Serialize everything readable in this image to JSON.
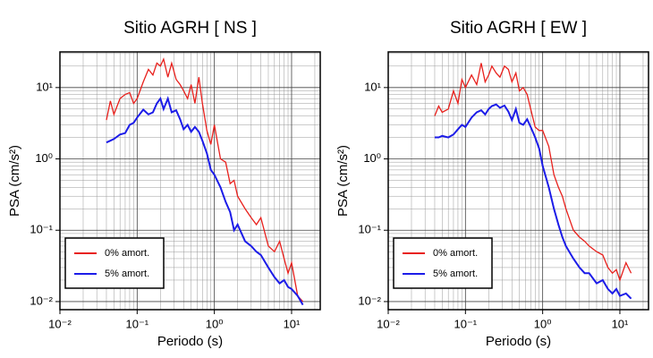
{
  "chart_data": [
    {
      "type": "line",
      "title": "Sitio AGRH [ NS ]",
      "x_label": "Periodo (s)",
      "y_label": "PSA (cm/s²)",
      "log_x": true,
      "log_y": true,
      "grid": true,
      "legend": "lower left",
      "xlim": [
        0.01,
        23.5
      ],
      "ylim": [
        0.0077,
        31.6
      ],
      "xticks": [
        {
          "value": 0.01,
          "label": "10⁻²"
        },
        {
          "value": 0.1,
          "label": "10⁻¹"
        },
        {
          "value": 1,
          "label": "10⁰"
        },
        {
          "value": 10,
          "label": "10¹"
        }
      ],
      "yticks": [
        {
          "value": 0.01,
          "label": "10⁻²"
        },
        {
          "value": 0.1,
          "label": "10⁻¹"
        },
        {
          "value": 1,
          "label": "10⁰"
        },
        {
          "value": 10,
          "label": "10¹"
        }
      ],
      "xminor": [
        0.02,
        0.03,
        0.04,
        0.05,
        0.06,
        0.07,
        0.08,
        0.09,
        0.2,
        0.3,
        0.4,
        0.5,
        0.6,
        0.7,
        0.8,
        0.9,
        2,
        3,
        4,
        5,
        6,
        7,
        8,
        9,
        20
      ],
      "yminor": [
        0.02,
        0.03,
        0.04,
        0.05,
        0.06,
        0.07,
        0.08,
        0.09,
        0.2,
        0.3,
        0.4,
        0.5,
        0.6,
        0.7,
        0.8,
        0.9,
        2,
        3,
        4,
        5,
        6,
        7,
        8,
        9,
        20,
        30
      ],
      "x": [
        0.04,
        0.045,
        0.05,
        0.06,
        0.07,
        0.08,
        0.09,
        0.1,
        0.12,
        0.14,
        0.16,
        0.18,
        0.2,
        0.22,
        0.25,
        0.28,
        0.32,
        0.36,
        0.4,
        0.45,
        0.5,
        0.56,
        0.63,
        0.7,
        0.8,
        0.9,
        1.0,
        1.2,
        1.4,
        1.6,
        1.8,
        2.0,
        2.5,
        3,
        3.5,
        4,
        5,
        6,
        7,
        8,
        9,
        10,
        12,
        14
      ],
      "series": [
        {
          "name": "0% amort.",
          "color": "#e8201c",
          "values": [
            3.5,
            6.5,
            4.2,
            7,
            8,
            8.5,
            6,
            7,
            12,
            18,
            15,
            22,
            20,
            25,
            14,
            22,
            13,
            11,
            9,
            7,
            11,
            6,
            14,
            6,
            2.5,
            1.6,
            3,
            1,
            0.9,
            0.45,
            0.5,
            0.3,
            0.2,
            0.15,
            0.12,
            0.15,
            0.06,
            0.05,
            0.07,
            0.04,
            0.025,
            0.035,
            0.012,
            0.01
          ]
        },
        {
          "name": "5% amort.",
          "color": "#1c1ce8",
          "values": [
            1.7,
            1.8,
            1.9,
            2.2,
            2.3,
            3,
            3.2,
            3.8,
            4.9,
            4.2,
            4.5,
            6,
            7,
            5,
            7,
            4.5,
            4.8,
            3.6,
            2.6,
            3,
            2.4,
            2.8,
            2.4,
            1.8,
            1.2,
            0.7,
            0.6,
            0.4,
            0.25,
            0.18,
            0.1,
            0.12,
            0.07,
            0.06,
            0.05,
            0.045,
            0.03,
            0.022,
            0.018,
            0.02,
            0.016,
            0.015,
            0.012,
            0.009
          ]
        }
      ]
    },
    {
      "type": "line",
      "title": "Sitio AGRH [ EW ]",
      "x_label": "Periodo (s)",
      "y_label": "PSA (cm/s²)",
      "log_x": true,
      "log_y": true,
      "grid": true,
      "legend": "lower left",
      "xlim": [
        0.01,
        23.5
      ],
      "ylim": [
        0.0077,
        31.6
      ],
      "xticks": [
        {
          "value": 0.01,
          "label": "10⁻²"
        },
        {
          "value": 0.1,
          "label": "10⁻¹"
        },
        {
          "value": 1,
          "label": "10⁰"
        },
        {
          "value": 10,
          "label": "10¹"
        }
      ],
      "yticks": [
        {
          "value": 0.01,
          "label": "10⁻²"
        },
        {
          "value": 0.1,
          "label": "10⁻¹"
        },
        {
          "value": 1,
          "label": "10⁰"
        },
        {
          "value": 10,
          "label": "10¹"
        }
      ],
      "xminor": [
        0.02,
        0.03,
        0.04,
        0.05,
        0.06,
        0.07,
        0.08,
        0.09,
        0.2,
        0.3,
        0.4,
        0.5,
        0.6,
        0.7,
        0.8,
        0.9,
        2,
        3,
        4,
        5,
        6,
        7,
        8,
        9,
        20
      ],
      "yminor": [
        0.02,
        0.03,
        0.04,
        0.05,
        0.06,
        0.07,
        0.08,
        0.09,
        0.2,
        0.3,
        0.4,
        0.5,
        0.6,
        0.7,
        0.8,
        0.9,
        2,
        3,
        4,
        5,
        6,
        7,
        8,
        9,
        20,
        30
      ],
      "x": [
        0.04,
        0.045,
        0.05,
        0.06,
        0.07,
        0.08,
        0.09,
        0.1,
        0.12,
        0.14,
        0.16,
        0.18,
        0.2,
        0.22,
        0.25,
        0.28,
        0.32,
        0.36,
        0.4,
        0.45,
        0.5,
        0.56,
        0.63,
        0.7,
        0.8,
        0.9,
        1.0,
        1.2,
        1.4,
        1.6,
        1.8,
        2.0,
        2.5,
        3,
        3.5,
        4,
        5,
        6,
        7,
        8,
        9,
        10,
        12,
        14
      ],
      "series": [
        {
          "name": "0% amort.",
          "color": "#e8201c",
          "values": [
            4,
            5.5,
            4.5,
            5,
            9,
            6,
            13,
            10,
            15,
            11,
            22,
            12,
            15,
            20,
            16,
            14,
            20,
            18,
            12,
            16,
            9,
            10,
            8,
            5,
            2.8,
            2.5,
            2.5,
            1.5,
            0.6,
            0.4,
            0.3,
            0.2,
            0.1,
            0.08,
            0.07,
            0.06,
            0.05,
            0.045,
            0.03,
            0.025,
            0.028,
            0.02,
            0.035,
            0.025
          ]
        },
        {
          "name": "5% amort.",
          "color": "#1c1ce8",
          "values": [
            2,
            2,
            2.1,
            2,
            2.2,
            2.6,
            3,
            2.8,
            3.8,
            4.5,
            4.8,
            4.2,
            5,
            5.5,
            5.8,
            5.2,
            5.6,
            4.6,
            3.5,
            5,
            3.2,
            3.0,
            3.6,
            2.8,
            2,
            1.4,
            0.8,
            0.4,
            0.2,
            0.12,
            0.08,
            0.06,
            0.04,
            0.03,
            0.025,
            0.025,
            0.018,
            0.02,
            0.015,
            0.013,
            0.015,
            0.012,
            0.013,
            0.011
          ]
        }
      ]
    }
  ]
}
